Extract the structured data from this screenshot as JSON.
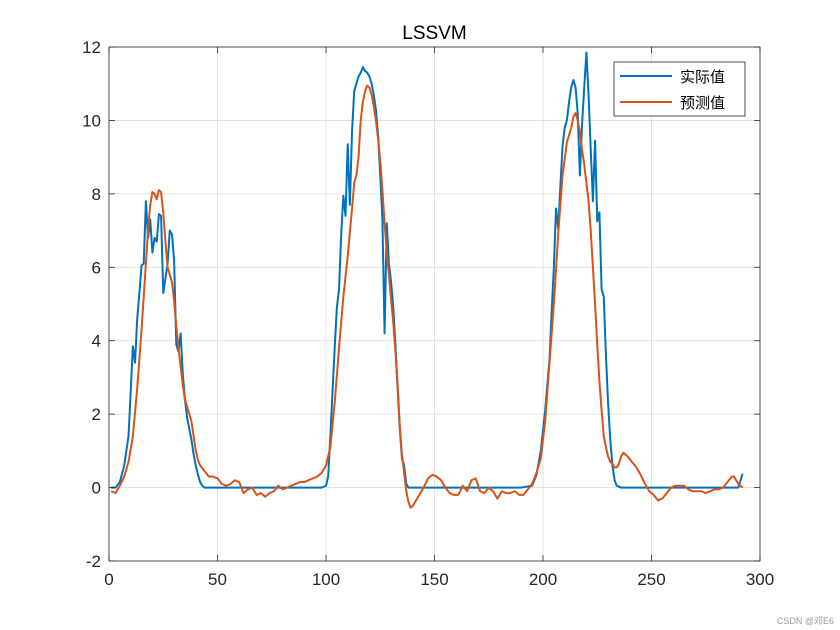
{
  "chart_data": {
    "type": "line",
    "title": "LSSVM",
    "xlabel": "",
    "ylabel": "",
    "xlim": [
      0,
      300
    ],
    "ylim": [
      -2,
      12
    ],
    "xticks": [
      0,
      50,
      100,
      150,
      200,
      250,
      300
    ],
    "yticks": [
      -2,
      0,
      2,
      4,
      6,
      8,
      10,
      12
    ],
    "grid": true,
    "legend_position": "top-right",
    "series": [
      {
        "name": "实际值",
        "color": "#0072BD",
        "points": [
          [
            1,
            0
          ],
          [
            3,
            0
          ],
          [
            5,
            0.15
          ],
          [
            7,
            0.6
          ],
          [
            9,
            1.4
          ],
          [
            10,
            2.6
          ],
          [
            11,
            3.85
          ],
          [
            12,
            3.4
          ],
          [
            13,
            4.6
          ],
          [
            14,
            5.3
          ],
          [
            15,
            6.05
          ],
          [
            16,
            6.1
          ],
          [
            17,
            7.8
          ],
          [
            18,
            6.8
          ],
          [
            19,
            7.3
          ],
          [
            20,
            6.4
          ],
          [
            21,
            6.8
          ],
          [
            22,
            6.7
          ],
          [
            23,
            7.45
          ],
          [
            24,
            7.4
          ],
          [
            25,
            5.3
          ],
          [
            26,
            5.7
          ],
          [
            27,
            6.1
          ],
          [
            28,
            7.0
          ],
          [
            29,
            6.9
          ],
          [
            30,
            6.2
          ],
          [
            31,
            3.9
          ],
          [
            32,
            3.7
          ],
          [
            33,
            4.2
          ],
          [
            34,
            3.1
          ],
          [
            35,
            2.4
          ],
          [
            36,
            1.9
          ],
          [
            37,
            1.6
          ],
          [
            38,
            1.3
          ],
          [
            39,
            0.9
          ],
          [
            40,
            0.6
          ],
          [
            41,
            0.35
          ],
          [
            42,
            0.15
          ],
          [
            43,
            0.05
          ],
          [
            44,
            0
          ],
          [
            50,
            0
          ],
          [
            60,
            0
          ],
          [
            70,
            0
          ],
          [
            80,
            0
          ],
          [
            90,
            0
          ],
          [
            98,
            0
          ],
          [
            100,
            0.05
          ],
          [
            101,
            0.3
          ],
          [
            102,
            1.4
          ],
          [
            103,
            2.6
          ],
          [
            104,
            3.8
          ],
          [
            105,
            4.9
          ],
          [
            106,
            5.4
          ],
          [
            107,
            6.9
          ],
          [
            108,
            7.95
          ],
          [
            109,
            7.4
          ],
          [
            110,
            9.35
          ],
          [
            111,
            7.7
          ],
          [
            112,
            9.7
          ],
          [
            113,
            10.8
          ],
          [
            114,
            11.0
          ],
          [
            115,
            11.2
          ],
          [
            116,
            11.3
          ],
          [
            117,
            11.45
          ],
          [
            118,
            11.35
          ],
          [
            119,
            11.3
          ],
          [
            120,
            11.2
          ],
          [
            121,
            11.0
          ],
          [
            122,
            10.7
          ],
          [
            123,
            10.3
          ],
          [
            124,
            9.6
          ],
          [
            125,
            8.5
          ],
          [
            126,
            7.3
          ],
          [
            127,
            4.2
          ],
          [
            128,
            7.2
          ],
          [
            129,
            6.1
          ],
          [
            130,
            5.6
          ],
          [
            131,
            4.9
          ],
          [
            132,
            3.9
          ],
          [
            133,
            2.7
          ],
          [
            134,
            1.6
          ],
          [
            135,
            0.8
          ],
          [
            136,
            0.6
          ],
          [
            137,
            0.1
          ],
          [
            138,
            0
          ],
          [
            150,
            0
          ],
          [
            170,
            0
          ],
          [
            190,
            0
          ],
          [
            195,
            0.05
          ],
          [
            197,
            0.35
          ],
          [
            199,
            1.0
          ],
          [
            201,
            2.1
          ],
          [
            203,
            3.5
          ],
          [
            204,
            4.8
          ],
          [
            205,
            6.0
          ],
          [
            206,
            7.6
          ],
          [
            207,
            7.05
          ],
          [
            208,
            8.2
          ],
          [
            209,
            9.3
          ],
          [
            210,
            9.8
          ],
          [
            211,
            10.0
          ],
          [
            212,
            10.5
          ],
          [
            213,
            10.9
          ],
          [
            214,
            11.1
          ],
          [
            215,
            10.9
          ],
          [
            216,
            10.2
          ],
          [
            217,
            8.5
          ],
          [
            218,
            9.9
          ],
          [
            219,
            10.9
          ],
          [
            220,
            11.85
          ],
          [
            221,
            10.7
          ],
          [
            222,
            9.2
          ],
          [
            223,
            7.8
          ],
          [
            224,
            9.45
          ],
          [
            225,
            7.25
          ],
          [
            226,
            7.5
          ],
          [
            227,
            5.4
          ],
          [
            228,
            5.2
          ],
          [
            229,
            3.6
          ],
          [
            230,
            2.3
          ],
          [
            231,
            1.3
          ],
          [
            232,
            0.6
          ],
          [
            233,
            0.2
          ],
          [
            234,
            0.05
          ],
          [
            236,
            0
          ],
          [
            250,
            0
          ],
          [
            270,
            0
          ],
          [
            285,
            0
          ],
          [
            290,
            0
          ],
          [
            292,
            0.38
          ]
        ]
      },
      {
        "name": "预测值",
        "color": "#D95319",
        "points": [
          [
            1,
            -0.1
          ],
          [
            3,
            -0.15
          ],
          [
            5,
            0.05
          ],
          [
            7,
            0.3
          ],
          [
            9,
            0.7
          ],
          [
            11,
            1.4
          ],
          [
            13,
            2.7
          ],
          [
            15,
            4.3
          ],
          [
            17,
            6.1
          ],
          [
            18,
            7.0
          ],
          [
            19,
            7.7
          ],
          [
            20,
            8.05
          ],
          [
            21,
            8.0
          ],
          [
            22,
            7.85
          ],
          [
            23,
            8.1
          ],
          [
            24,
            8.05
          ],
          [
            25,
            7.5
          ],
          [
            26,
            6.7
          ],
          [
            27,
            6.0
          ],
          [
            28,
            5.8
          ],
          [
            29,
            5.6
          ],
          [
            30,
            5.1
          ],
          [
            31,
            4.4
          ],
          [
            32,
            3.8
          ],
          [
            33,
            3.3
          ],
          [
            34,
            2.8
          ],
          [
            35,
            2.4
          ],
          [
            36,
            2.2
          ],
          [
            37,
            2.0
          ],
          [
            38,
            1.8
          ],
          [
            39,
            1.4
          ],
          [
            40,
            1.0
          ],
          [
            41,
            0.75
          ],
          [
            42,
            0.6
          ],
          [
            44,
            0.45
          ],
          [
            46,
            0.3
          ],
          [
            48,
            0.3
          ],
          [
            50,
            0.25
          ],
          [
            52,
            0.1
          ],
          [
            54,
            0.05
          ],
          [
            56,
            0.1
          ],
          [
            58,
            0.2
          ],
          [
            60,
            0.15
          ],
          [
            62,
            -0.15
          ],
          [
            64,
            -0.05
          ],
          [
            66,
            0.0
          ],
          [
            68,
            -0.2
          ],
          [
            70,
            -0.15
          ],
          [
            72,
            -0.25
          ],
          [
            74,
            -0.15
          ],
          [
            76,
            -0.1
          ],
          [
            78,
            0.05
          ],
          [
            80,
            -0.05
          ],
          [
            82,
            0.0
          ],
          [
            84,
            0.05
          ],
          [
            86,
            0.1
          ],
          [
            88,
            0.15
          ],
          [
            90,
            0.15
          ],
          [
            92,
            0.2
          ],
          [
            94,
            0.25
          ],
          [
            96,
            0.3
          ],
          [
            98,
            0.4
          ],
          [
            100,
            0.6
          ],
          [
            102,
            1.1
          ],
          [
            104,
            2.3
          ],
          [
            106,
            3.8
          ],
          [
            108,
            5.2
          ],
          [
            110,
            6.3
          ],
          [
            112,
            7.6
          ],
          [
            113,
            8.3
          ],
          [
            114,
            8.5
          ],
          [
            115,
            9.0
          ],
          [
            116,
            10.0
          ],
          [
            117,
            10.5
          ],
          [
            118,
            10.8
          ],
          [
            119,
            10.95
          ],
          [
            120,
            10.9
          ],
          [
            121,
            10.7
          ],
          [
            122,
            10.4
          ],
          [
            123,
            10.0
          ],
          [
            124,
            9.5
          ],
          [
            125,
            8.9
          ],
          [
            126,
            8.1
          ],
          [
            127,
            7.2
          ],
          [
            128,
            6.4
          ],
          [
            129,
            5.8
          ],
          [
            130,
            5.1
          ],
          [
            131,
            4.5
          ],
          [
            132,
            3.7
          ],
          [
            133,
            2.8
          ],
          [
            134,
            1.7
          ],
          [
            135,
            0.9
          ],
          [
            136,
            0.4
          ],
          [
            137,
            -0.1
          ],
          [
            138,
            -0.4
          ],
          [
            139,
            -0.55
          ],
          [
            140,
            -0.5
          ],
          [
            141,
            -0.4
          ],
          [
            143,
            -0.2
          ],
          [
            145,
            0.0
          ],
          [
            147,
            0.25
          ],
          [
            149,
            0.35
          ],
          [
            151,
            0.3
          ],
          [
            153,
            0.2
          ],
          [
            155,
            0.0
          ],
          [
            157,
            -0.15
          ],
          [
            159,
            -0.2
          ],
          [
            161,
            -0.2
          ],
          [
            163,
            0.05
          ],
          [
            165,
            -0.1
          ],
          [
            167,
            0.2
          ],
          [
            169,
            0.25
          ],
          [
            171,
            -0.1
          ],
          [
            173,
            -0.15
          ],
          [
            175,
            0.0
          ],
          [
            177,
            -0.1
          ],
          [
            179,
            -0.3
          ],
          [
            181,
            -0.1
          ],
          [
            183,
            -0.15
          ],
          [
            185,
            -0.15
          ],
          [
            187,
            -0.1
          ],
          [
            189,
            -0.2
          ],
          [
            191,
            -0.2
          ],
          [
            193,
            -0.05
          ],
          [
            195,
            0.1
          ],
          [
            197,
            0.4
          ],
          [
            199,
            0.8
          ],
          [
            201,
            1.8
          ],
          [
            203,
            3.4
          ],
          [
            205,
            5.0
          ],
          [
            207,
            6.9
          ],
          [
            209,
            8.5
          ],
          [
            211,
            9.4
          ],
          [
            213,
            9.8
          ],
          [
            214,
            10.1
          ],
          [
            215,
            10.2
          ],
          [
            216,
            10.0
          ],
          [
            217,
            9.7
          ],
          [
            218,
            9.2
          ],
          [
            219,
            8.8
          ],
          [
            220,
            8.3
          ],
          [
            221,
            7.8
          ],
          [
            222,
            7.0
          ],
          [
            223,
            6.0
          ],
          [
            224,
            5.0
          ],
          [
            225,
            3.9
          ],
          [
            226,
            2.9
          ],
          [
            227,
            2.1
          ],
          [
            228,
            1.4
          ],
          [
            229,
            1.1
          ],
          [
            230,
            0.85
          ],
          [
            231,
            0.7
          ],
          [
            232,
            0.65
          ],
          [
            233,
            0.55
          ],
          [
            234,
            0.55
          ],
          [
            235,
            0.65
          ],
          [
            236,
            0.85
          ],
          [
            237,
            0.95
          ],
          [
            239,
            0.85
          ],
          [
            241,
            0.7
          ],
          [
            243,
            0.55
          ],
          [
            245,
            0.35
          ],
          [
            247,
            0.1
          ],
          [
            249,
            -0.1
          ],
          [
            251,
            -0.2
          ],
          [
            253,
            -0.35
          ],
          [
            255,
            -0.3
          ],
          [
            257,
            -0.15
          ],
          [
            259,
            0.0
          ],
          [
            261,
            0.05
          ],
          [
            263,
            0.05
          ],
          [
            265,
            0.05
          ],
          [
            267,
            -0.05
          ],
          [
            269,
            -0.1
          ],
          [
            271,
            -0.1
          ],
          [
            273,
            -0.1
          ],
          [
            275,
            -0.15
          ],
          [
            277,
            -0.1
          ],
          [
            279,
            -0.05
          ],
          [
            281,
            -0.05
          ],
          [
            283,
            0.0
          ],
          [
            285,
            0.15
          ],
          [
            287,
            0.3
          ],
          [
            288,
            0.3
          ],
          [
            289,
            0.2
          ],
          [
            290,
            0.1
          ],
          [
            291,
            0.05
          ],
          [
            292,
            0.0
          ]
        ]
      }
    ]
  },
  "watermark": "CSDN @邓E6"
}
